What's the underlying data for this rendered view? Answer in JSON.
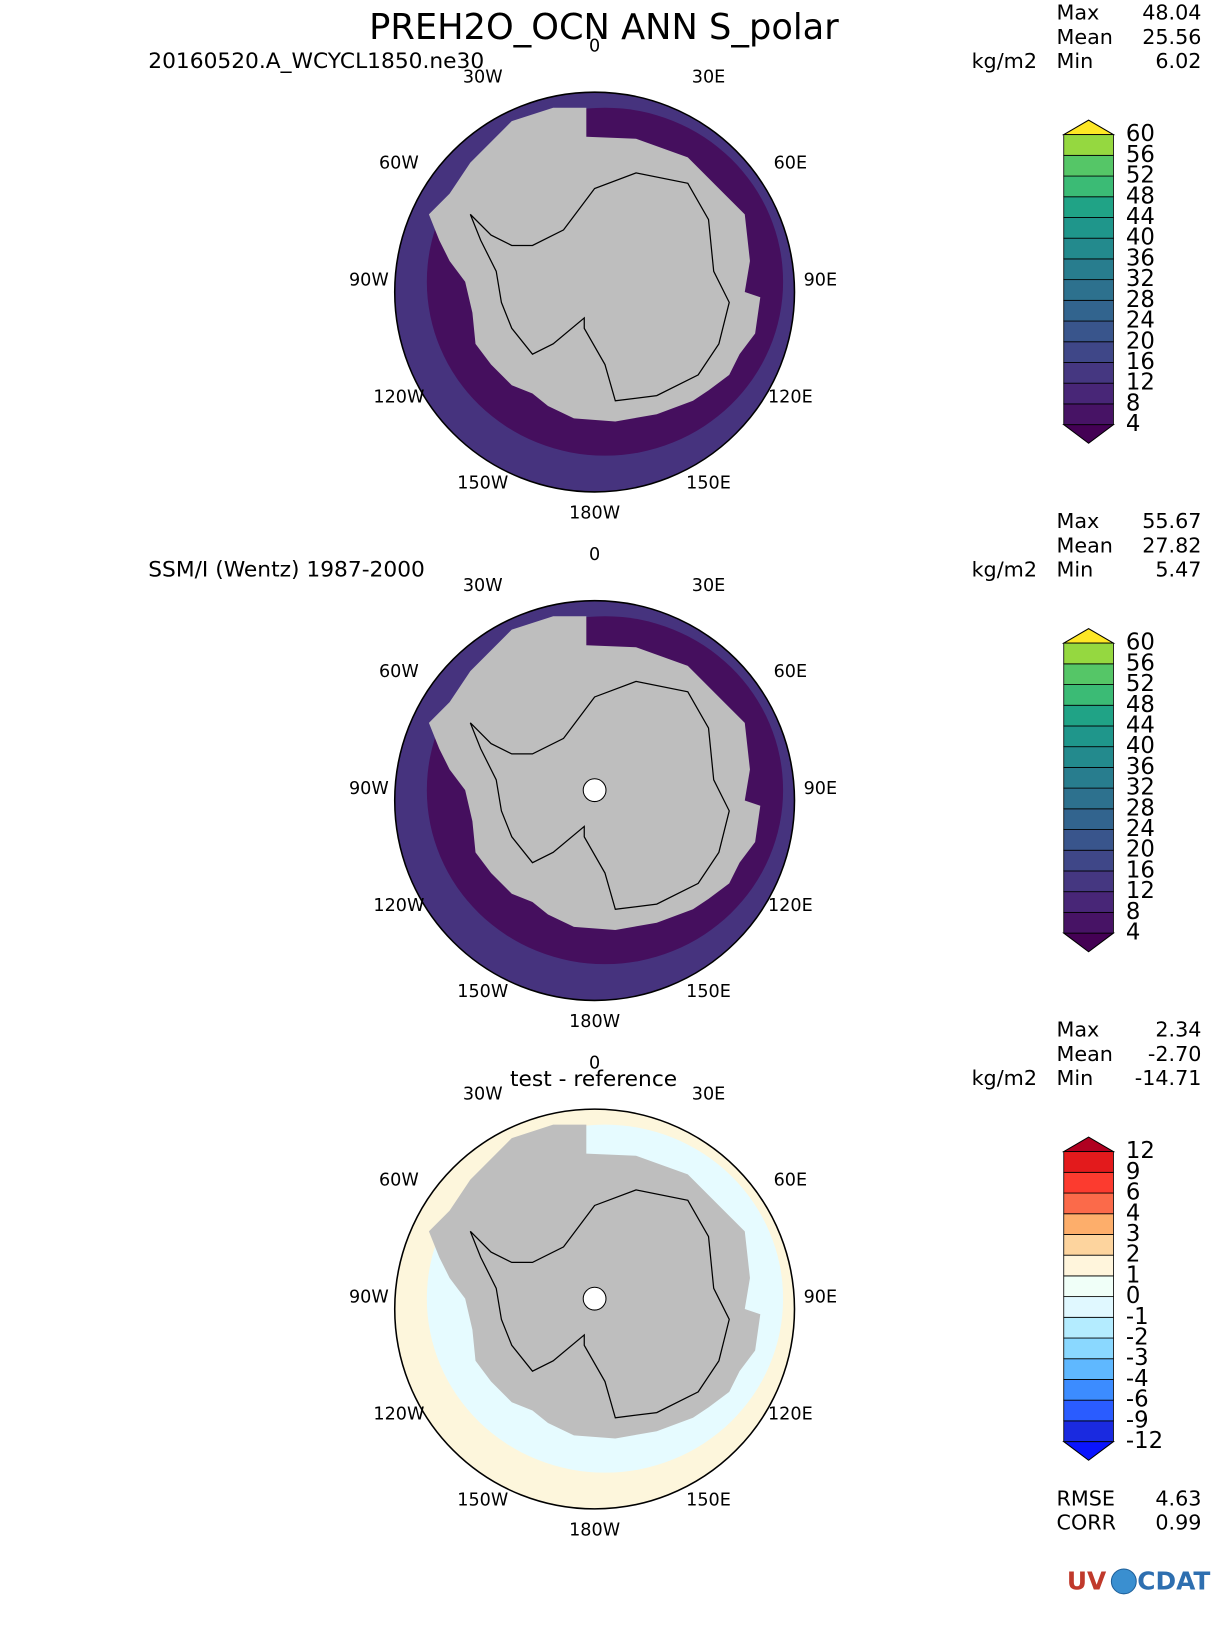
{
  "title": "PREH2O_OCN ANN S_polar",
  "panels": [
    {
      "subtitle": "20160520.A_WCYCL1850.ne30",
      "units": "kg/m2",
      "stats": [
        {
          "label": "Max",
          "value": "48.04"
        },
        {
          "label": "Mean",
          "value": "25.56"
        },
        {
          "label": "Min",
          "value": "6.02"
        }
      ],
      "lon_labels": [
        "0",
        "30E",
        "60E",
        "90E",
        "120E",
        "150E",
        "180W",
        "150W",
        "120W",
        "90W",
        "60W",
        "30W"
      ],
      "colorbar": {
        "labels": [
          4,
          8,
          12,
          16,
          20,
          24,
          28,
          32,
          36,
          40,
          44,
          48,
          52,
          56,
          60
        ],
        "colors": [
          "#471365",
          "#482677",
          "#453781",
          "#3f4788",
          "#39558c",
          "#32648e",
          "#2d718e",
          "#287d8e",
          "#238a8d",
          "#1f968b",
          "#20a386",
          "#3bbb75",
          "#55c667",
          "#95d840"
        ],
        "below_color": "#440154",
        "above_color": "#fde725"
      }
    },
    {
      "subtitle": "SSM/I (Wentz) 1987-2000",
      "units": "kg/m2",
      "stats": [
        {
          "label": "Max",
          "value": "55.67"
        },
        {
          "label": "Mean",
          "value": "27.82"
        },
        {
          "label": "Min",
          "value": "5.47"
        }
      ],
      "lon_labels": [
        "0",
        "30E",
        "60E",
        "90E",
        "120E",
        "150E",
        "180W",
        "150W",
        "120W",
        "90W",
        "60W",
        "30W"
      ],
      "colorbar": {
        "labels": [
          4,
          8,
          12,
          16,
          20,
          24,
          28,
          32,
          36,
          40,
          44,
          48,
          52,
          56,
          60
        ],
        "colors": [
          "#471365",
          "#482677",
          "#453781",
          "#3f4788",
          "#39558c",
          "#32648e",
          "#2d718e",
          "#287d8e",
          "#238a8d",
          "#1f968b",
          "#20a386",
          "#3bbb75",
          "#55c667",
          "#95d840"
        ],
        "below_color": "#440154",
        "above_color": "#fde725"
      }
    },
    {
      "subtitle": "test - reference",
      "units": "kg/m2",
      "stats": [
        {
          "label": "Max",
          "value": "2.34"
        },
        {
          "label": "Mean",
          "value": "-2.70"
        },
        {
          "label": "Min",
          "value": "-14.71"
        }
      ],
      "lon_labels": [
        "0",
        "30E",
        "60E",
        "90E",
        "120E",
        "150E",
        "180W",
        "150W",
        "120W",
        "90W",
        "60W",
        "30W"
      ],
      "colorbar": {
        "labels": [
          -12,
          -9,
          -6,
          -4,
          -3,
          -2,
          -1,
          0,
          1,
          2,
          3,
          4,
          6,
          9,
          12
        ],
        "colors": [
          "#1a2ae0",
          "#2a5cff",
          "#3c8cff",
          "#5fb8ff",
          "#8ad8ff",
          "#b4ecff",
          "#e0f8ff",
          "#f0fff8",
          "#fff5dc",
          "#fdd49e",
          "#fdae6b",
          "#fb6a4a",
          "#fc3b2f",
          "#e31a1c"
        ],
        "below_color": "#0a14ff",
        "above_color": "#b00020"
      }
    }
  ],
  "footer": {
    "stats": [
      {
        "label": "RMSE",
        "value": "4.63"
      },
      {
        "label": "CORR",
        "value": "0.99"
      }
    ],
    "logo": {
      "left": "UV",
      "right": "CDAT"
    }
  }
}
